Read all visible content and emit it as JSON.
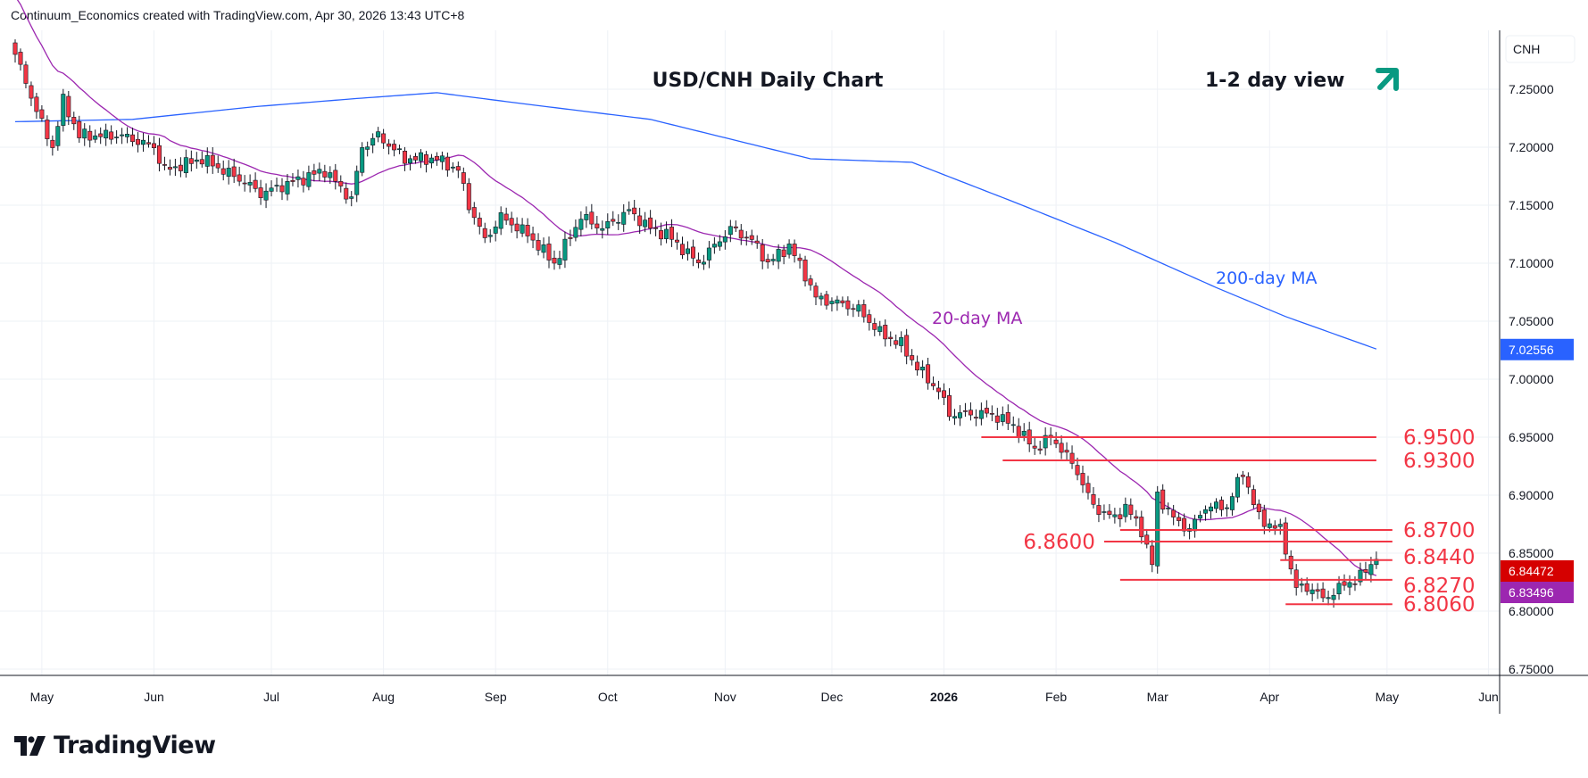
{
  "header": "Continuum_Economics created with TradingView.com, Apr 30, 2026 13:43 UTC+8",
  "logo_text": "TradingView",
  "currency_label": "CNH",
  "colors": {
    "up": "#089981",
    "down": "#f23645",
    "ma20": "#9c27b0",
    "ma200": "#2962ff",
    "levels": "#f23645",
    "grid": "#eef1f6",
    "arrow": "#089981"
  },
  "chart_data": {
    "type": "candlestick",
    "title": "USD/CNH Daily Chart",
    "view_label": "1-2 day view",
    "view_direction": "up",
    "ylim": [
      6.75,
      7.25
    ],
    "y_ticks": [
      "7.25000",
      "7.20000",
      "7.15000",
      "7.10000",
      "7.05000",
      "7.00000",
      "6.95000",
      "6.90000",
      "6.85000",
      "6.80000",
      "6.75000"
    ],
    "y_tick_values": [
      7.25,
      7.2,
      7.15,
      7.1,
      7.05,
      7.0,
      6.95,
      6.9,
      6.85,
      6.8,
      6.75
    ],
    "x_unit": "trading days since start",
    "x_range": [
      0,
      285
    ],
    "x_ticks": [
      {
        "label": "May",
        "day": 5
      },
      {
        "label": "Jun",
        "day": 26
      },
      {
        "label": "Jul",
        "day": 48
      },
      {
        "label": "Aug",
        "day": 69
      },
      {
        "label": "Sep",
        "day": 90
      },
      {
        "label": "Oct",
        "day": 111
      },
      {
        "label": "Nov",
        "day": 133
      },
      {
        "label": "Dec",
        "day": 153
      },
      {
        "label": "2026",
        "day": 174
      },
      {
        "label": "Feb",
        "day": 195
      },
      {
        "label": "Mar",
        "day": 214
      },
      {
        "label": "Apr",
        "day": 235
      },
      {
        "label": "May",
        "day": 257
      },
      {
        "label": "Jun",
        "day": 276
      }
    ],
    "close_anchors": [
      [
        0,
        7.28
      ],
      [
        5,
        7.22
      ],
      [
        7,
        7.2
      ],
      [
        9,
        7.24
      ],
      [
        12,
        7.21
      ],
      [
        20,
        7.21
      ],
      [
        26,
        7.2
      ],
      [
        28,
        7.18
      ],
      [
        35,
        7.19
      ],
      [
        43,
        7.17
      ],
      [
        46,
        7.16
      ],
      [
        52,
        7.17
      ],
      [
        58,
        7.18
      ],
      [
        63,
        7.155
      ],
      [
        65,
        7.2
      ],
      [
        68,
        7.21
      ],
      [
        73,
        7.19
      ],
      [
        79,
        7.19
      ],
      [
        83,
        7.18
      ],
      [
        85,
        7.15
      ],
      [
        88,
        7.12
      ],
      [
        91,
        7.14
      ],
      [
        96,
        7.125
      ],
      [
        101,
        7.1
      ],
      [
        103,
        7.115
      ],
      [
        106,
        7.14
      ],
      [
        110,
        7.13
      ],
      [
        115,
        7.145
      ],
      [
        119,
        7.13
      ],
      [
        122,
        7.125
      ],
      [
        128,
        7.1
      ],
      [
        132,
        7.12
      ],
      [
        134,
        7.13
      ],
      [
        138,
        7.12
      ],
      [
        141,
        7.1
      ],
      [
        145,
        7.115
      ],
      [
        148,
        7.09
      ],
      [
        150,
        7.07
      ],
      [
        155,
        7.065
      ],
      [
        158,
        7.06
      ],
      [
        162,
        7.04
      ],
      [
        166,
        7.03
      ],
      [
        169,
        7.01
      ],
      [
        173,
        6.99
      ],
      [
        175,
        6.97
      ],
      [
        179,
        6.97
      ],
      [
        183,
        6.97
      ],
      [
        187,
        6.96
      ],
      [
        191,
        6.94
      ],
      [
        194,
        6.95
      ],
      [
        196,
        6.94
      ],
      [
        199,
        6.92
      ],
      [
        202,
        6.89
      ],
      [
        206,
        6.88
      ],
      [
        208,
        6.89
      ],
      [
        211,
        6.87
      ],
      [
        213,
        6.84
      ],
      [
        214,
        6.9
      ],
      [
        217,
        6.88
      ],
      [
        220,
        6.87
      ],
      [
        223,
        6.89
      ],
      [
        227,
        6.89
      ],
      [
        230,
        6.92
      ],
      [
        233,
        6.88
      ],
      [
        237,
        6.87
      ],
      [
        240,
        6.82
      ],
      [
        243,
        6.82
      ],
      [
        245,
        6.81
      ],
      [
        248,
        6.82
      ],
      [
        252,
        6.83
      ],
      [
        255,
        6.845
      ]
    ],
    "series": [
      {
        "name": "USD/CNH",
        "type": "candlestick",
        "last": "6.84472"
      },
      {
        "name": "20-day MA",
        "type": "line",
        "last": "6.83496",
        "label": "20-day MA"
      },
      {
        "name": "200-day MA",
        "type": "line",
        "last": "7.02556",
        "label": "200-day MA",
        "anchors": [
          [
            0,
            7.222
          ],
          [
            22,
            7.224
          ],
          [
            45,
            7.235
          ],
          [
            64,
            7.242
          ],
          [
            79,
            7.247
          ],
          [
            96,
            7.237
          ],
          [
            119,
            7.224
          ],
          [
            149,
            7.19
          ],
          [
            168,
            7.187
          ],
          [
            187,
            7.153
          ],
          [
            206,
            7.118
          ],
          [
            225,
            7.079
          ],
          [
            238,
            7.054
          ],
          [
            255,
            7.026
          ]
        ]
      }
    ],
    "levels": [
      {
        "value": 6.95,
        "label": "6.9500",
        "from": 181,
        "to": 255,
        "label_side": "right"
      },
      {
        "value": 6.93,
        "label": "6.9300",
        "from": 185,
        "to": 255,
        "label_side": "right"
      },
      {
        "value": 6.87,
        "label": "6.8700",
        "from": 207,
        "to": 258,
        "label_side": "right"
      },
      {
        "value": 6.86,
        "label": "6.8600",
        "from": 204,
        "to": 258,
        "label_side": "left"
      },
      {
        "value": 6.844,
        "label": "6.8440",
        "from": 237,
        "to": 258,
        "label_side": "right"
      },
      {
        "value": 6.827,
        "label": "6.8270",
        "from": 207,
        "to": 258,
        "label_side": "right"
      },
      {
        "value": 6.806,
        "label": "6.8060",
        "from": 238,
        "to": 258,
        "label_side": "right"
      }
    ],
    "price_badges": [
      {
        "value": 7.02556,
        "label": "7.02556",
        "color": "#2962ff"
      },
      {
        "value": 6.84472,
        "label": "6.84472",
        "color": "#d50000"
      },
      {
        "value": 6.83496,
        "label": "6.83496",
        "color": "#9c27b0"
      }
    ]
  }
}
